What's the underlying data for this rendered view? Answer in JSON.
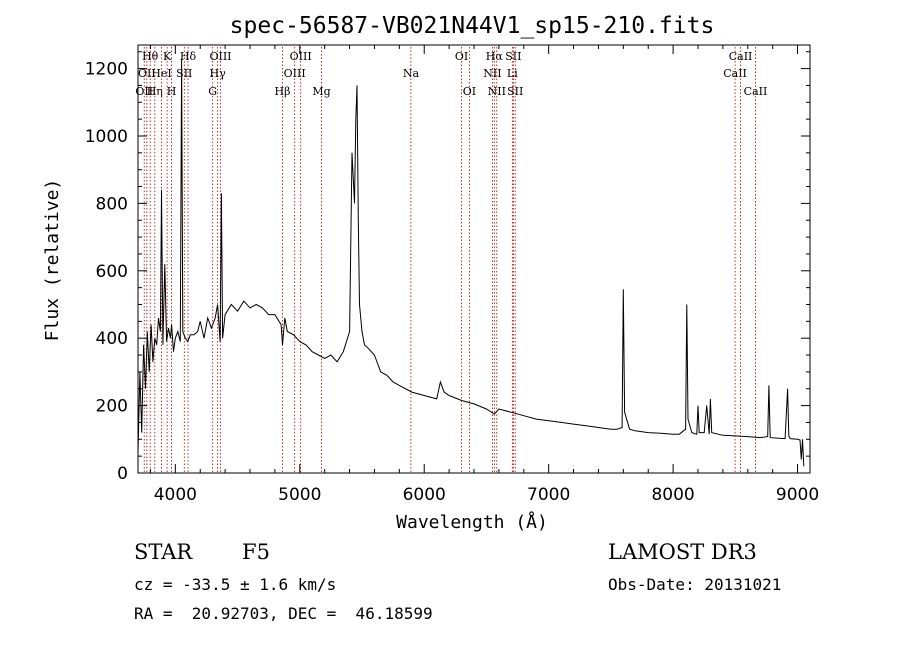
{
  "chart_data": {
    "type": "line",
    "title": "spec-56587-VB021N44V1_sp15-210.fits",
    "xlabel": "Wavelength (Å)",
    "ylabel": "Flux (relative)",
    "xlim": [
      3700,
      9100
    ],
    "ylim": [
      0,
      1270
    ],
    "xticks": [
      4000,
      5000,
      6000,
      7000,
      8000,
      9000
    ],
    "yticks": [
      0,
      200,
      400,
      600,
      800,
      1000,
      1200
    ],
    "spectrum": {
      "name": "flux",
      "x": [
        3700,
        3715,
        3730,
        3745,
        3760,
        3775,
        3790,
        3805,
        3820,
        3835,
        3850,
        3865,
        3880,
        3889,
        3900,
        3915,
        3930,
        3945,
        3960,
        3970,
        3985,
        4000,
        4020,
        4040,
        4050,
        4060,
        4080,
        4100,
        4120,
        4150,
        4180,
        4200,
        4230,
        4260,
        4290,
        4320,
        4340,
        4360,
        4370,
        4380,
        4400,
        4450,
        4500,
        4550,
        4600,
        4650,
        4700,
        4750,
        4800,
        4850,
        4861,
        4880,
        4900,
        4950,
        5000,
        5050,
        5100,
        5150,
        5200,
        5250,
        5300,
        5350,
        5400,
        5420,
        5440,
        5450,
        5460,
        5470,
        5480,
        5500,
        5520,
        5550,
        5600,
        5650,
        5700,
        5750,
        5800,
        5900,
        6000,
        6100,
        6130,
        6160,
        6200,
        6300,
        6400,
        6500,
        6563,
        6600,
        6700,
        6800,
        6900,
        7000,
        7100,
        7200,
        7300,
        7400,
        7500,
        7550,
        7590,
        7600,
        7610,
        7650,
        7700,
        7800,
        7900,
        8000,
        8050,
        8100,
        8110,
        8120,
        8150,
        8190,
        8200,
        8210,
        8250,
        8270,
        8290,
        8300,
        8310,
        8400,
        8500,
        8600,
        8700,
        8760,
        8770,
        8780,
        8850,
        8900,
        8920,
        8930,
        8940,
        9000,
        9020,
        9030,
        9040,
        9050
      ],
      "y": [
        60,
        300,
        120,
        380,
        250,
        420,
        300,
        440,
        330,
        400,
        380,
        460,
        420,
        840,
        380,
        620,
        390,
        430,
        400,
        440,
        360,
        400,
        420,
        390,
        1230,
        420,
        400,
        390,
        410,
        410,
        420,
        450,
        400,
        460,
        430,
        460,
        500,
        390,
        830,
        400,
        470,
        500,
        480,
        510,
        490,
        500,
        490,
        470,
        470,
        440,
        380,
        460,
        420,
        410,
        390,
        380,
        360,
        350,
        340,
        350,
        330,
        360,
        420,
        950,
        800,
        1050,
        1150,
        750,
        500,
        420,
        380,
        370,
        350,
        300,
        290,
        270,
        260,
        240,
        230,
        220,
        270,
        240,
        230,
        215,
        205,
        190,
        175,
        190,
        180,
        170,
        160,
        155,
        150,
        145,
        140,
        135,
        130,
        130,
        135,
        545,
        180,
        130,
        125,
        120,
        118,
        115,
        115,
        130,
        500,
        160,
        120,
        115,
        200,
        120,
        120,
        200,
        115,
        220,
        120,
        112,
        110,
        108,
        105,
        108,
        260,
        105,
        103,
        102,
        250,
        110,
        102,
        100,
        98,
        40,
        100,
        20
      ]
    },
    "line_markers": [
      {
        "wl": 3750,
        "label": "OII",
        "row": 3
      },
      {
        "wl": 3771,
        "label": "OII",
        "row": 2
      },
      {
        "wl": 3798,
        "label": "Hθ",
        "row": 1
      },
      {
        "wl": 3835,
        "label": "Hη",
        "row": 3
      },
      {
        "wl": 3889,
        "label": "HeI",
        "row": 2
      },
      {
        "wl": 3934,
        "label": "K",
        "row": 1
      },
      {
        "wl": 3970,
        "label": "H",
        "row": 3
      },
      {
        "wl": 4072,
        "label": "SII",
        "row": 2
      },
      {
        "wl": 4102,
        "label": "Hδ",
        "row": 1
      },
      {
        "wl": 4300,
        "label": "G",
        "row": 3
      },
      {
        "wl": 4340,
        "label": "Hγ",
        "row": 2
      },
      {
        "wl": 4363,
        "label": "OIII",
        "row": 1
      },
      {
        "wl": 4861,
        "label": "Hβ",
        "row": 3
      },
      {
        "wl": 4959,
        "label": "OIII",
        "row": 2
      },
      {
        "wl": 5007,
        "label": "OIII",
        "row": 1
      },
      {
        "wl": 5175,
        "label": "Mg",
        "row": 3
      },
      {
        "wl": 5893,
        "label": "Na",
        "row": 2
      },
      {
        "wl": 6300,
        "label": "OI",
        "row": 1
      },
      {
        "wl": 6363,
        "label": "OI",
        "row": 3
      },
      {
        "wl": 6548,
        "label": "NII",
        "row": 2
      },
      {
        "wl": 6563,
        "label": "Hα",
        "row": 1
      },
      {
        "wl": 6583,
        "label": "NII",
        "row": 3
      },
      {
        "wl": 6708,
        "label": "Li",
        "row": 2
      },
      {
        "wl": 6716,
        "label": "SII",
        "row": 1
      },
      {
        "wl": 6731,
        "label": "SII",
        "row": 3
      },
      {
        "wl": 8498,
        "label": "CaII",
        "row": 2
      },
      {
        "wl": 8542,
        "label": "CaII",
        "row": 1
      },
      {
        "wl": 8662,
        "label": "CaII",
        "row": 3
      }
    ]
  },
  "info": {
    "object_class": "STAR",
    "subclass": "F5",
    "survey": "LAMOST DR3",
    "cz": "cz = -33.5 ± 1.6 km/s",
    "obs_date": "Obs-Date: 20131021",
    "coords": "RA =  20.92703, DEC =  46.18599"
  },
  "colors": {
    "spectrum": "#000000",
    "marker": "#b00000",
    "axes": "#000000"
  }
}
